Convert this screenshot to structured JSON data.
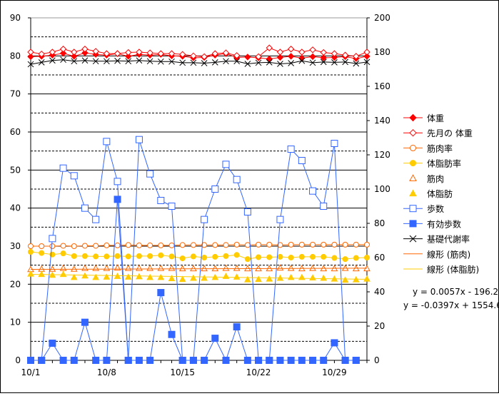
{
  "chart_data": {
    "type": "line",
    "title": "",
    "xlabel": "",
    "ylabel": "",
    "y2label": "",
    "x_tick_labels": [
      "10/1",
      "10/8",
      "10/15",
      "10/22",
      "10/29"
    ],
    "x_tick_days": [
      1,
      8,
      15,
      22,
      29
    ],
    "x_range": [
      1,
      32
    ],
    "ylim": [
      0,
      90
    ],
    "y_ticks": [
      0,
      10,
      20,
      30,
      40,
      50,
      60,
      70,
      80,
      90
    ],
    "y2lim": [
      0,
      200
    ],
    "y2_ticks": [
      0,
      20,
      40,
      60,
      80,
      100,
      120,
      140,
      160,
      180,
      200
    ],
    "grid": "horizontal solid major, dashed minor",
    "legend_position": "right",
    "series": [
      {
        "name": "体重",
        "axis": "left",
        "color": "#ff0000",
        "marker": "diamond-filled",
        "line": true,
        "x": [
          1,
          2,
          3,
          4,
          5,
          6,
          7,
          8,
          9,
          10,
          11,
          12,
          13,
          14,
          15,
          16,
          17,
          18,
          19,
          20,
          21,
          22,
          23,
          24,
          25,
          26,
          27,
          28,
          29,
          30,
          31,
          32
        ],
        "y": [
          79.8,
          79.9,
          80.2,
          80.7,
          79.9,
          80.8,
          80.4,
          80.2,
          80.6,
          79.9,
          80.4,
          80.2,
          80.4,
          80.0,
          79.9,
          79.5,
          79.6,
          80.2,
          80.6,
          79.6,
          79.7,
          79.5,
          79.2,
          79.6,
          79.9,
          79.4,
          79.8,
          79.5,
          79.6,
          79.8,
          79.3,
          79.9
        ]
      },
      {
        "name": "先月の 体重",
        "axis": "left",
        "color": "#ff0000",
        "marker": "diamond-open",
        "line": true,
        "x": [
          1,
          2,
          3,
          4,
          5,
          6,
          7,
          8,
          9,
          10,
          11,
          12,
          13,
          14,
          15,
          16,
          17,
          18,
          19,
          20,
          21,
          22,
          23,
          24,
          25,
          26,
          27,
          28,
          29,
          30,
          31,
          32
        ],
        "y": [
          81.0,
          80.5,
          81.0,
          81.8,
          81.0,
          81.8,
          81.2,
          80.6,
          80.6,
          80.9,
          81.0,
          80.8,
          80.6,
          80.6,
          80.4,
          80.0,
          79.8,
          80.6,
          80.8,
          80.1,
          null,
          79.8,
          82.1,
          81.0,
          81.8,
          81.0,
          81.6,
          80.9,
          80.6,
          80.2,
          79.9,
          81.0
        ]
      },
      {
        "name": "筋肉率",
        "axis": "left",
        "color": "#ff6600",
        "marker": "circle-open",
        "line": true,
        "x": [
          1,
          2,
          3,
          4,
          5,
          6,
          7,
          8,
          9,
          10,
          11,
          12,
          13,
          14,
          15,
          16,
          17,
          18,
          19,
          20,
          21,
          22,
          23,
          24,
          25,
          26,
          27,
          28,
          29,
          30,
          31,
          32
        ],
        "y": [
          30.0,
          30.0,
          30.0,
          30.1,
          30.0,
          30.1,
          30.1,
          30.2,
          30.2,
          30.3,
          30.2,
          30.2,
          30.2,
          30.2,
          30.3,
          30.3,
          30.3,
          30.3,
          30.3,
          30.4,
          30.3,
          30.4,
          30.4,
          30.3,
          30.4,
          30.4,
          30.4,
          30.4,
          30.4,
          30.4,
          30.4,
          30.4
        ]
      },
      {
        "name": "体脂肪率",
        "axis": "left",
        "color": "#ffcc00",
        "marker": "circle-filled",
        "line": true,
        "x": [
          1,
          2,
          3,
          4,
          5,
          6,
          7,
          8,
          9,
          10,
          11,
          12,
          13,
          14,
          15,
          16,
          17,
          18,
          19,
          20,
          21,
          22,
          23,
          24,
          25,
          26,
          27,
          28,
          29,
          30,
          31,
          32
        ],
        "y": [
          28.5,
          28.2,
          27.8,
          28.1,
          27.4,
          27.4,
          27.3,
          27.3,
          27.4,
          27.3,
          27.4,
          27.4,
          27.6,
          27.3,
          26.8,
          27.3,
          27.0,
          27.2,
          27.4,
          27.7,
          26.6,
          27.1,
          27.1,
          27.2,
          27.0,
          27.2,
          27.2,
          27.2,
          26.9,
          26.6,
          26.9,
          27.0
        ]
      },
      {
        "name": "筋肉",
        "axis": "left",
        "color": "#ff6600",
        "marker": "triangle-open",
        "line": false,
        "x": [
          1,
          2,
          3,
          4,
          5,
          6,
          7,
          8,
          9,
          10,
          11,
          12,
          13,
          14,
          15,
          16,
          17,
          18,
          19,
          20,
          21,
          22,
          23,
          24,
          25,
          26,
          27,
          28,
          29,
          30,
          31,
          32
        ],
        "y": [
          23.9,
          24.0,
          24.0,
          24.2,
          24.0,
          24.2,
          24.2,
          24.2,
          24.3,
          24.2,
          24.2,
          24.2,
          24.2,
          24.2,
          24.1,
          24.1,
          24.1,
          24.1,
          24.2,
          24.2,
          24.1,
          24.1,
          24.1,
          24.3,
          24.2,
          24.1,
          24.2,
          24.1,
          24.1,
          24.2,
          24.1,
          24.1
        ]
      },
      {
        "name": "体脂肪",
        "axis": "left",
        "color": "#ffcc00",
        "marker": "triangle-filled",
        "line": false,
        "x": [
          1,
          2,
          3,
          4,
          5,
          6,
          7,
          8,
          9,
          10,
          11,
          12,
          13,
          14,
          15,
          16,
          17,
          18,
          19,
          20,
          21,
          22,
          23,
          24,
          25,
          26,
          27,
          28,
          29,
          30,
          31,
          32
        ],
        "y": [
          22.7,
          22.6,
          22.4,
          22.6,
          21.8,
          22.2,
          21.8,
          21.9,
          22.1,
          21.9,
          22.0,
          21.8,
          21.8,
          21.5,
          21.3,
          21.6,
          21.6,
          21.8,
          22.1,
          21.9,
          21.2,
          21.3,
          21.4,
          21.6,
          21.8,
          21.8,
          21.7,
          21.6,
          21.4,
          21.1,
          21.2,
          21.4
        ]
      },
      {
        "name": "歩数",
        "axis": "left",
        "color": "#3366ff",
        "marker": "square-open",
        "line": true,
        "x": [
          1,
          2,
          3,
          4,
          5,
          6,
          7,
          8,
          9,
          10,
          11,
          12,
          13,
          14,
          15,
          16,
          17,
          18,
          19,
          20,
          21,
          22,
          23,
          24,
          25,
          26,
          27,
          28,
          29,
          30,
          31,
          32
        ],
        "y": [
          0,
          0,
          32.0,
          50.5,
          48.5,
          40.0,
          37.0,
          57.5,
          47.0,
          0,
          58.0,
          49.0,
          42.0,
          40.5,
          0,
          0,
          37.0,
          45.0,
          51.5,
          47.5,
          39.0,
          0,
          0,
          37.0,
          55.5,
          52.5,
          44.5,
          40.5,
          57.0,
          0,
          0,
          null
        ]
      },
      {
        "name": "有効歩数",
        "axis": "left",
        "color": "#3366ff",
        "marker": "square-filled",
        "line": true,
        "x": [
          1,
          2,
          3,
          4,
          5,
          6,
          7,
          8,
          9,
          10,
          11,
          12,
          13,
          14,
          15,
          16,
          17,
          18,
          19,
          20,
          21,
          22,
          23,
          24,
          25,
          26,
          27,
          28,
          29,
          30,
          31,
          32
        ],
        "y": [
          0,
          0,
          4.5,
          0,
          0,
          10.0,
          0,
          0,
          42.3,
          0,
          0,
          0,
          17.8,
          6.8,
          0,
          0,
          0,
          5.8,
          0,
          8.8,
          0,
          0,
          0,
          0,
          0,
          0,
          0,
          0,
          4.6,
          0,
          0,
          null
        ]
      },
      {
        "name": "基礎代謝率",
        "axis": "left",
        "color": "#000000",
        "marker": "x",
        "line": true,
        "x": [
          1,
          2,
          3,
          4,
          5,
          6,
          7,
          8,
          9,
          10,
          11,
          12,
          13,
          14,
          15,
          16,
          17,
          18,
          19,
          20,
          21,
          22,
          23,
          24,
          25,
          26,
          27,
          28,
          29,
          30,
          31,
          32
        ],
        "y": [
          77.8,
          78.3,
          78.8,
          79.0,
          78.6,
          78.8,
          78.6,
          78.6,
          78.7,
          78.6,
          78.8,
          78.6,
          78.5,
          78.5,
          78.2,
          78.2,
          78.1,
          78.3,
          78.6,
          78.6,
          77.9,
          78.2,
          78.3,
          77.9,
          78.1,
          78.7,
          78.2,
          78.4,
          78.3,
          78.4,
          78.0,
          78.4
        ]
      },
      {
        "name": "線形 (筋肉)",
        "axis": "left",
        "color": "#ff6600",
        "marker": "none",
        "line": true,
        "trend": true,
        "x": [
          1,
          32
        ],
        "y": [
          23.9,
          24.2
        ]
      },
      {
        "name": "線形 (体脂肪)",
        "axis": "left",
        "color": "#ffcc00",
        "marker": "none",
        "line": true,
        "trend": true,
        "x": [
          1,
          32
        ],
        "y": [
          22.6,
          21.3
        ]
      }
    ],
    "legend_labels": [
      "体重",
      "先月の 体重",
      "筋肉率",
      "体脂肪率",
      "筋肉",
      "体脂肪",
      "歩数",
      "有効歩数",
      "基礎代謝率",
      "線形 (筋肉)",
      "線形 (体脂肪)"
    ],
    "annotations": [
      "y = 0.0057x - 196.2",
      "y = -0.0397x + 1554.6"
    ]
  }
}
